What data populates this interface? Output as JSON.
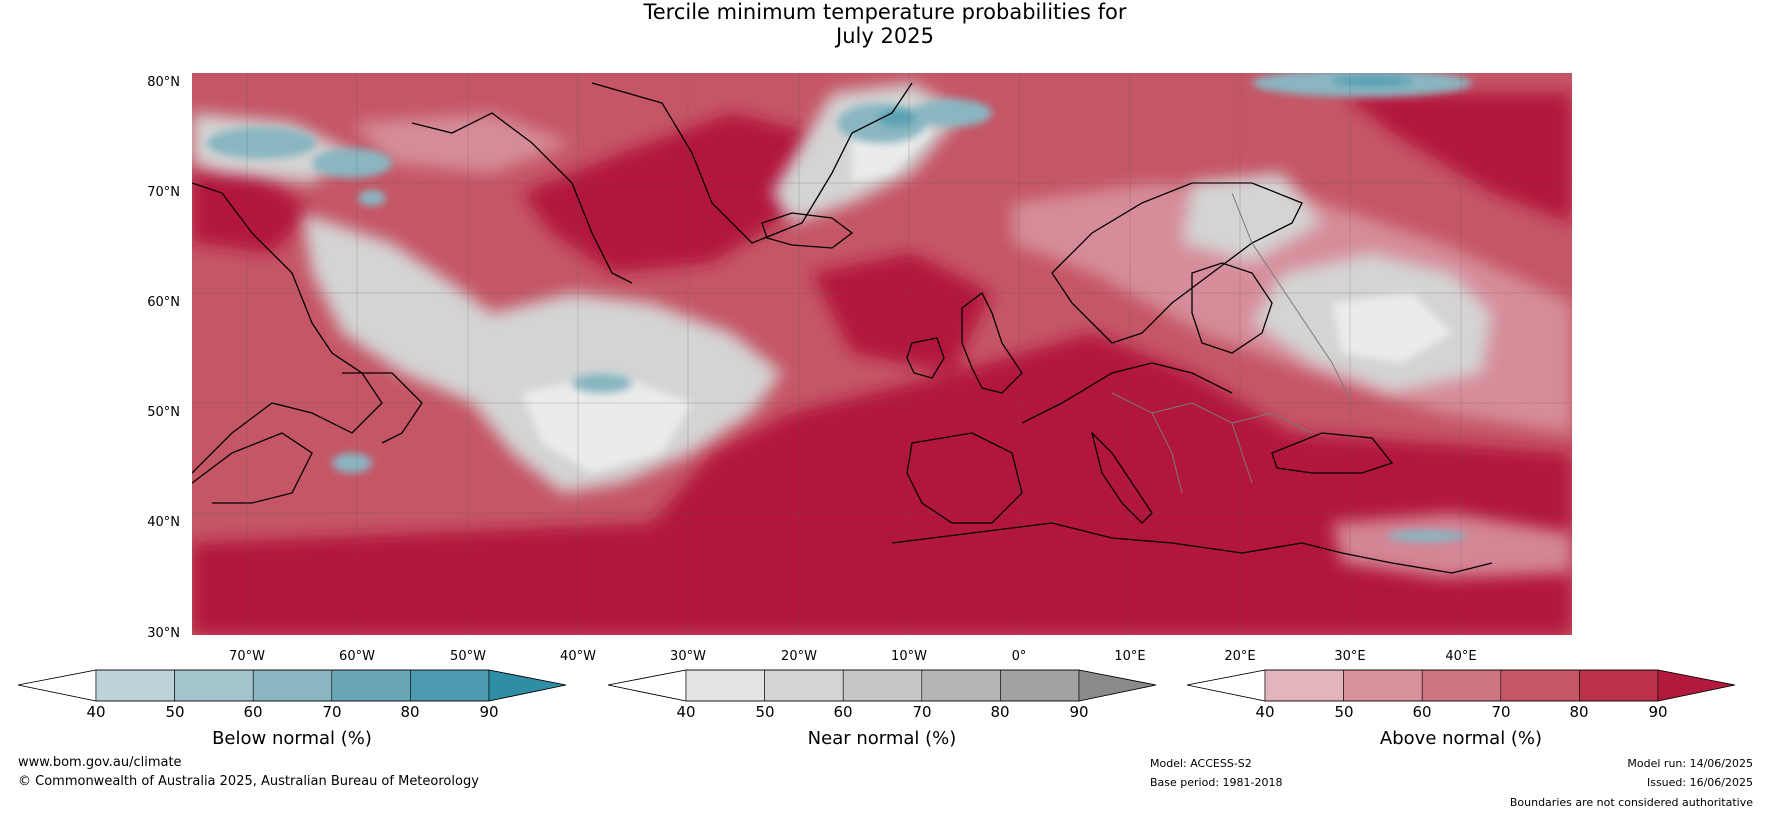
{
  "title": {
    "line1": "Tercile minimum temperature probabilities for",
    "line2": "July 2025"
  },
  "map": {
    "latitude_labels": [
      "80°N",
      "70°N",
      "60°N",
      "50°N",
      "40°N",
      "30°N"
    ],
    "longitude_labels": [
      "70°W",
      "60°W",
      "50°W",
      "40°W",
      "30°W",
      "20°W",
      "10°W",
      "0°",
      "10°E",
      "20°E",
      "30°E",
      "40°E"
    ],
    "extent": {
      "lon_min": -75,
      "lon_max": 50,
      "lat_min": 30,
      "lat_max": 81
    }
  },
  "colorbars": [
    {
      "label": "Below normal (%)",
      "ticks": [
        "40",
        "50",
        "60",
        "70",
        "80",
        "90"
      ],
      "colors": [
        "#ffffff",
        "#bcd3da",
        "#a3c4cd",
        "#89b6c1",
        "#6aa7b6",
        "#4d9bb0",
        "#2f8ea5"
      ]
    },
    {
      "label": "Near normal (%)",
      "ticks": [
        "40",
        "50",
        "60",
        "70",
        "80",
        "90"
      ],
      "colors": [
        "#ffffff",
        "#e4e4e4",
        "#d4d4d4",
        "#c6c6c6",
        "#b5b5b5",
        "#a2a2a2",
        "#8a8a8a"
      ]
    },
    {
      "label": "Above normal (%)",
      "ticks": [
        "40",
        "50",
        "60",
        "70",
        "80",
        "90"
      ],
      "colors": [
        "#ffffff",
        "#e2b5bd",
        "#d8939f",
        "#cd7581",
        "#c55666",
        "#bb3148",
        "#b3193c"
      ]
    }
  ],
  "footer": {
    "website": "www.bom.gov.au/climate",
    "copyright": "© Commonwealth of Australia 2025, Australian Bureau of Meteorology",
    "model": "Model: ACCESS-S2",
    "base_period": "Base period: 1981-2018",
    "model_run": "Model run: 14/06/2025",
    "issued": "Issued: 16/06/2025",
    "disclaimer": "Boundaries are not considered authoritative"
  }
}
